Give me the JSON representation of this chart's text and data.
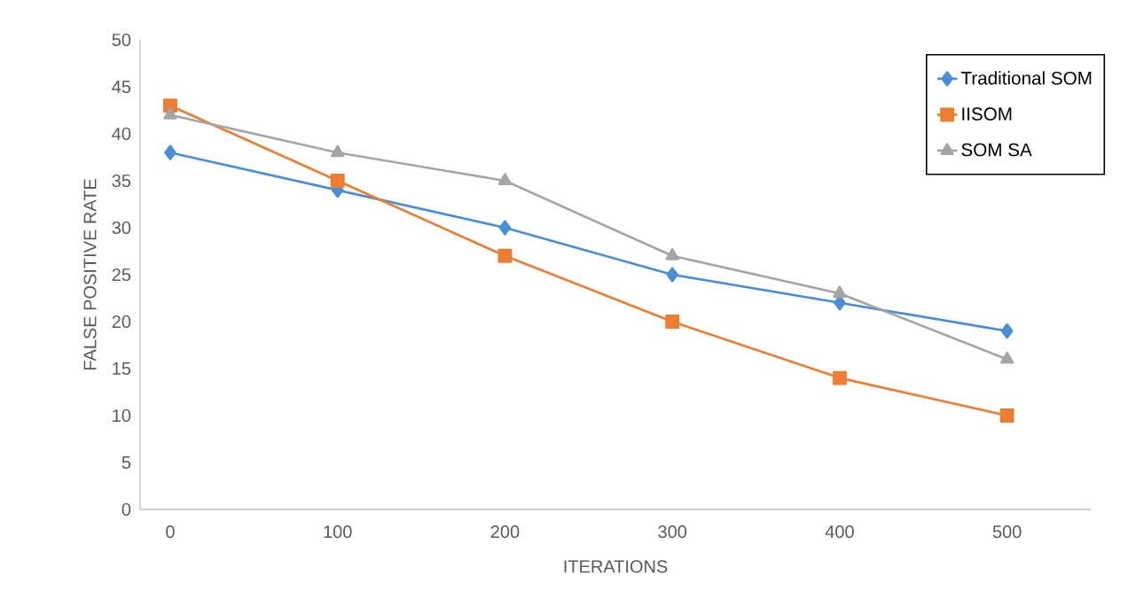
{
  "chart_data": {
    "type": "line",
    "xlabel": "ITERATIONS",
    "ylabel": "FALSE POSITIVE RATE",
    "categories": [
      "0",
      "100",
      "200",
      "300",
      "400",
      "500"
    ],
    "series": [
      {
        "name": "Traditional SOM",
        "color": "#4a8fd6",
        "marker": "diamond",
        "values": [
          38,
          34,
          30,
          25,
          22,
          19
        ]
      },
      {
        "name": "IISOM",
        "color": "#ed7d31",
        "marker": "square",
        "values": [
          43,
          35,
          27,
          20,
          14,
          10
        ]
      },
      {
        "name": "SOM SA",
        "color": "#a5a5a5",
        "marker": "triangle",
        "values": [
          42,
          38,
          35,
          27,
          23,
          16
        ]
      }
    ],
    "ylim": [
      0,
      50
    ],
    "yticks": [
      0,
      5,
      10,
      15,
      20,
      25,
      30,
      35,
      40,
      45,
      50
    ],
    "grid": false,
    "legend": "top right",
    "line_style": "solid"
  }
}
